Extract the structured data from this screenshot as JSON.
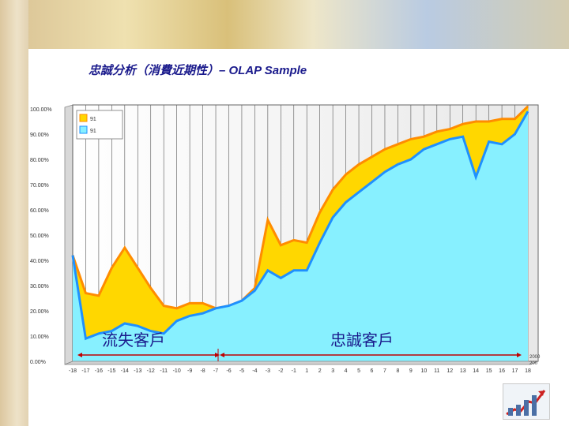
{
  "slide": {
    "title": "忠誠分析（消費近期性）– OLAP Sample"
  },
  "colors": {
    "series1_fill": "#ffd700",
    "series1_line": "#ff8c00",
    "series2_fill": "#87f0ff",
    "series2_line": "#1e90ff",
    "arrow": "#c00000",
    "annotation_text": "#1a1a8c"
  },
  "chart_data": {
    "type": "area",
    "categories": [
      "-18",
      "-17",
      "-16",
      "-15",
      "-14",
      "-13",
      "-12",
      "-11",
      "-10",
      "-9",
      "-8",
      "-7",
      "-6",
      "-5",
      "-4",
      "-3",
      "-2",
      "-1",
      "1",
      "2",
      "3",
      "4",
      "5",
      "6",
      "7",
      "8",
      "9",
      "10",
      "11",
      "12",
      "13",
      "14",
      "15",
      "16",
      "17",
      "18"
    ],
    "series": [
      {
        "name": "91",
        "values": [
          42,
          27,
          26,
          37,
          45,
          37,
          29,
          22,
          21,
          23,
          23,
          21,
          22,
          24,
          29,
          56,
          46,
          48,
          47,
          59,
          68,
          74,
          78,
          81,
          84,
          86,
          88,
          89,
          91,
          92,
          94,
          95,
          95,
          96,
          96,
          101
        ]
      },
      {
        "name": "91",
        "values": [
          42,
          9,
          11,
          12,
          15,
          14,
          12,
          11,
          16,
          18,
          19,
          21,
          22,
          24,
          28,
          36,
          33,
          36,
          36,
          47,
          57,
          63,
          67,
          71,
          75,
          78,
          80,
          84,
          86,
          88,
          89,
          73,
          87,
          86,
          90,
          99
        ]
      }
    ],
    "ylim": [
      0,
      100
    ],
    "yticks": [
      "0.00%",
      "10.00%",
      "20.00%",
      "30.00%",
      "40.00%",
      "50.00%",
      "60.00%",
      "70.00%",
      "80.00%",
      "90.00%",
      "100.00%"
    ],
    "extra_x_labels": [
      "2000",
      "200"
    ],
    "annotations": [
      {
        "label": "流失客戶"
      },
      {
        "label": "忠誠客戶"
      }
    ],
    "grid": "vertical",
    "legend": "top-left"
  }
}
